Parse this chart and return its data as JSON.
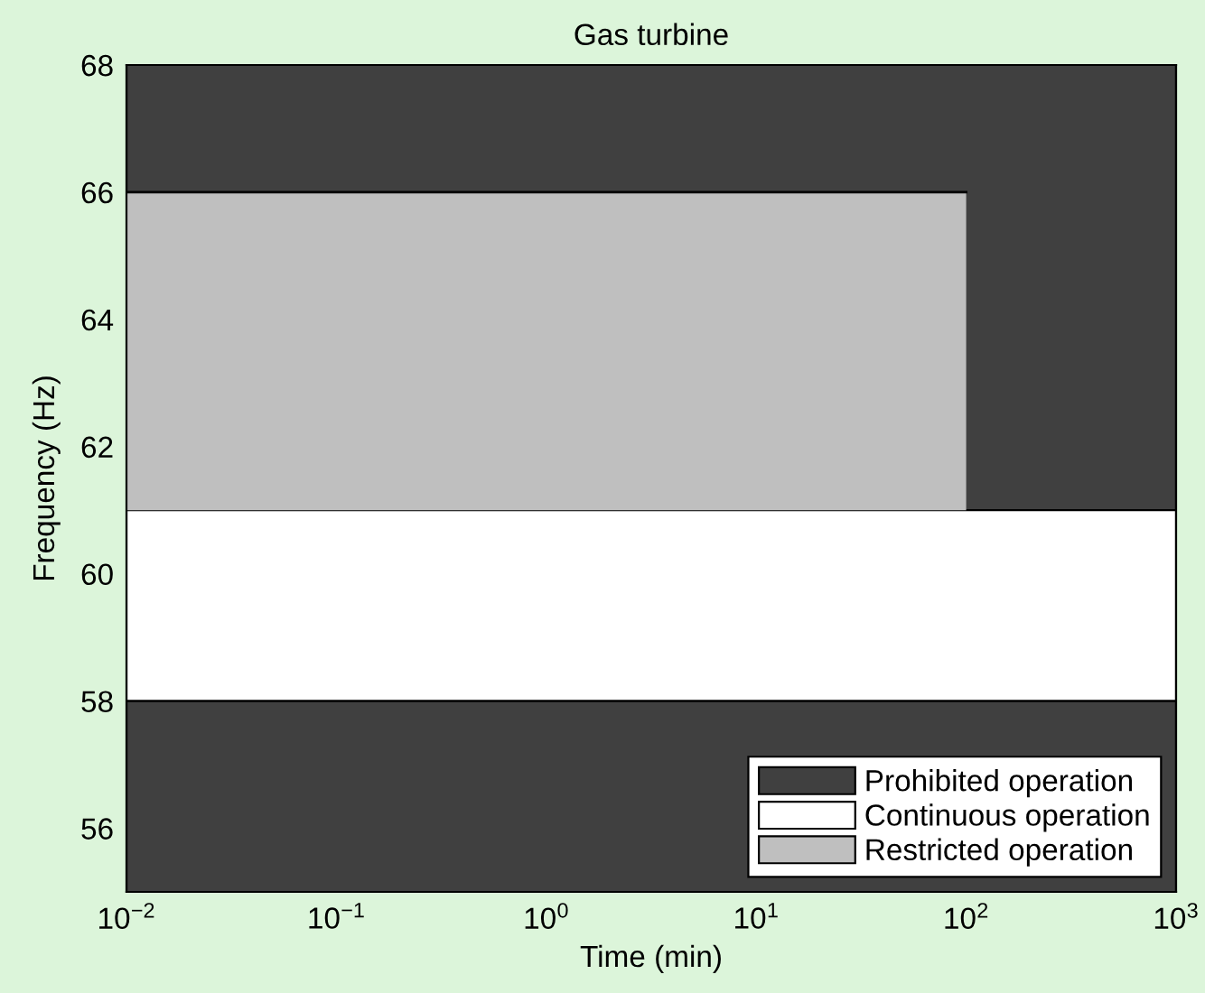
{
  "chart_data": {
    "type": "line",
    "title": "Gas turbine",
    "xlabel": "Time (min)",
    "ylabel": "Frequency (Hz)",
    "log": "x",
    "xlim": [
      0.01,
      1000
    ],
    "xticks": [
      {
        "value": 0.01,
        "label": "10$^{−2}$"
      },
      {
        "value": 0.1,
        "label": "10$^{−1}$"
      },
      {
        "value": 1,
        "label": "10$^{0}$"
      },
      {
        "value": 10,
        "label": "10$^{1}$"
      },
      {
        "value": 100,
        "label": "10$^{2}$"
      },
      {
        "value": 1000,
        "label": "10$^{3}$"
      }
    ],
    "ylim": [
      55,
      68
    ],
    "yticks": [
      56,
      58,
      60,
      62,
      64,
      66,
      68
    ],
    "bands": [
      {
        "axis": "y",
        "from": 61,
        "to": 68,
        "label": "Prohibited operation",
        "color": "#404040"
      },
      {
        "axis": "y",
        "from": 58,
        "to": 61,
        "label": "Continuous operation",
        "color": "#ffffff"
      },
      {
        "axis": "y",
        "from": 55,
        "to": 58,
        "color": "#404040"
      }
    ],
    "series": [
      {
        "name": "Restricted operation",
        "color": "#000000",
        "x": [
          0.01,
          100
        ],
        "values": [
          66,
          66
        ],
        "lower": [
          61,
          61
        ],
        "upper": [
          66,
          66
        ]
      }
    ],
    "legend": "bottom right"
  }
}
